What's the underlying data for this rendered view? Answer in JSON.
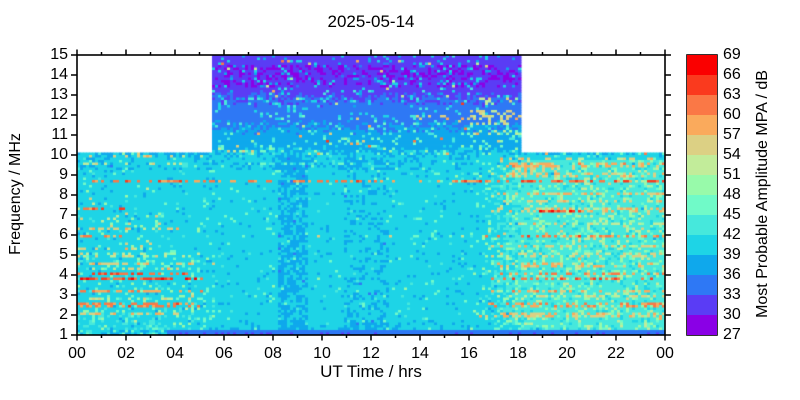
{
  "chart_data": {
    "type": "heatmap",
    "subtype": "spectrogram",
    "title": "2025-05-14",
    "xlabel": "UT Time / hrs",
    "ylabel": "Frequency / MHz",
    "x_range_hours": [
      0,
      24
    ],
    "y_range_mhz": [
      1,
      15
    ],
    "x_ticks_hours": [
      0,
      2,
      4,
      6,
      8,
      10,
      12,
      14,
      16,
      18,
      20,
      22,
      24
    ],
    "x_tick_labels": [
      "00",
      "02",
      "04",
      "06",
      "08",
      "10",
      "12",
      "14",
      "16",
      "18",
      "20",
      "22",
      "00"
    ],
    "y_ticks_mhz": [
      1,
      2,
      3,
      4,
      5,
      6,
      7,
      8,
      9,
      10,
      11,
      12,
      13,
      14,
      15
    ],
    "y_tick_labels": [
      "1",
      "2",
      "3",
      "4",
      "5",
      "6",
      "7",
      "8",
      "9",
      "10",
      "11",
      "12",
      "13",
      "14",
      "15"
    ],
    "grid": false,
    "legend_position": "right-colorbar",
    "colorbar": {
      "label": "Most Probable Amplitude MPA / dB",
      "min_db": 27,
      "max_db": 69,
      "step_db": 3,
      "tick_labels_top_to_bottom": [
        "69",
        "66",
        "63",
        "60",
        "57",
        "54",
        "51",
        "48",
        "45",
        "42",
        "39",
        "36",
        "33",
        "30",
        "27"
      ],
      "band_colors_low_to_high": [
        "#8A00E6",
        "#5A3CF5",
        "#2E78F5",
        "#0FA8EC",
        "#1ED4E6",
        "#46E8DC",
        "#70FAC8",
        "#98FAAA",
        "#C2EC9A",
        "#DCD084",
        "#FAAA5C",
        "#FA7846",
        "#FA3A1E",
        "#FA0000"
      ]
    },
    "coverage_regions": [
      {
        "t_hours": [
          0,
          5.55
        ],
        "f_mhz": [
          1,
          10
        ],
        "note": "night, low band only; rest white"
      },
      {
        "t_hours": [
          5.55,
          18.12
        ],
        "f_mhz": [
          1,
          15
        ],
        "note": "daytime full band"
      },
      {
        "t_hours": [
          18.12,
          24
        ],
        "f_mhz": [
          1,
          10
        ],
        "note": "evening, low band only; rest white"
      }
    ],
    "render_model": {
      "seed": 42,
      "grid": {
        "cols": 196,
        "rows": 112
      },
      "mid_t0": 5.55,
      "mid_t1": 18.12,
      "day_background_db": 40.3,
      "upper_profile_f_db": [
        [
          10,
          39.2
        ],
        [
          10.5,
          38.2
        ],
        [
          11,
          36.8
        ],
        [
          11.5,
          35.8
        ],
        [
          12,
          34.8
        ],
        [
          12.5,
          33.6
        ],
        [
          13,
          32.8
        ],
        [
          13.4,
          31.6
        ],
        [
          14,
          30.6
        ],
        [
          14.4,
          30.8
        ],
        [
          15,
          31.0
        ]
      ],
      "violet_patch": {
        "f0": 13.4,
        "f1": 14.5,
        "prob": 0.35,
        "delta_db": -1.8
      },
      "night": {
        "t_end": 5.6,
        "fade": 3.4,
        "below_mhz": 5.3,
        "boost_per_mhz": 0.3,
        "speckle": 0.15
      },
      "evening": {
        "t0": 15.9,
        "t1": 18.4,
        "below_mhz": 9.75,
        "boost_db": 3.4,
        "speckle": 0.2
      },
      "bottom_band": {
        "fmax_mhz": 1.25,
        "t_start": 3.65,
        "db": 34.6
      },
      "low_gradient": {
        "fmax": 2.0,
        "per_mhz_db": -1.2
      },
      "vertical_dips": [
        {
          "t0": 8.2,
          "t1": 9.45,
          "fmax": 10,
          "delta_db": -1.4
        },
        {
          "t0": 10.9,
          "t1": 12.7,
          "fmax": 10,
          "delta_db": -0.7
        }
      ],
      "lines_f_hw_t0_t1_db_dens_mode": [
        [
          2.1,
          0.08,
          0,
          5.6,
          56,
          0.6,
          "n"
        ],
        [
          2.5,
          0.07,
          0,
          5.3,
          61,
          0.55,
          "n"
        ],
        [
          2.85,
          0.06,
          0,
          4.6,
          54,
          0.45,
          "n"
        ],
        [
          3.2,
          0.07,
          0,
          5.1,
          60,
          0.55,
          "n"
        ],
        [
          3.5,
          0.06,
          0,
          4.5,
          54,
          0.4,
          "n"
        ],
        [
          3.8,
          0.1,
          0,
          5.3,
          64,
          0.7,
          "n"
        ],
        [
          4.05,
          0.09,
          0,
          5.3,
          63,
          0.65,
          "n"
        ],
        [
          4.3,
          0.06,
          0,
          4.4,
          55,
          0.45,
          "n"
        ],
        [
          4.55,
          0.07,
          0,
          6.0,
          57,
          0.45,
          "n"
        ],
        [
          5.0,
          0.07,
          0,
          4.5,
          53,
          0.45,
          "n"
        ],
        [
          5.35,
          0.06,
          0,
          2.5,
          55,
          0.4,
          "n"
        ],
        [
          5.9,
          0.07,
          0,
          1.8,
          61,
          0.55,
          "n"
        ],
        [
          6.3,
          0.07,
          0,
          4.2,
          56,
          0.45,
          "n"
        ],
        [
          7.35,
          0.08,
          0,
          2.0,
          62,
          0.55,
          "n"
        ],
        [
          9.0,
          0.05,
          0,
          1.6,
          58,
          0.35,
          "n"
        ],
        [
          9.55,
          0.08,
          0,
          5.6,
          53,
          0.28,
          "n"
        ],
        [
          9.95,
          0.07,
          0,
          5.6,
          55,
          0.3,
          "n"
        ],
        [
          8.65,
          0.06,
          0,
          17.8,
          61,
          0.5,
          ""
        ],
        [
          4.0,
          0.05,
          5.6,
          15.9,
          58,
          0.06,
          ""
        ],
        [
          5.9,
          0.05,
          5.6,
          15.9,
          55,
          0.05,
          ""
        ],
        [
          7.25,
          0.05,
          5.6,
          15.9,
          55,
          0.05,
          ""
        ],
        [
          9.6,
          0.06,
          5.6,
          15.9,
          46,
          0.1,
          ""
        ],
        [
          10.3,
          0.15,
          5.8,
          7.2,
          54,
          0.18,
          ""
        ],
        [
          11.9,
          0.12,
          13.8,
          18.12,
          57,
          0.15,
          ""
        ],
        [
          11.9,
          0.35,
          15.8,
          18.12,
          54,
          0.28,
          ""
        ],
        [
          12.7,
          0.2,
          16.2,
          18.12,
          53,
          0.22,
          ""
        ],
        [
          11.1,
          0.15,
          16.0,
          18.12,
          52,
          0.2,
          ""
        ],
        [
          14.8,
          0.12,
          8.3,
          8.9,
          60,
          0.35,
          ""
        ],
        [
          2.0,
          0.08,
          15.9,
          24,
          57,
          0.5,
          "e"
        ],
        [
          2.5,
          0.07,
          16.3,
          24,
          60,
          0.45,
          "e"
        ],
        [
          2.9,
          0.06,
          16.8,
          24,
          54,
          0.4,
          "e"
        ],
        [
          3.2,
          0.07,
          16.3,
          24,
          58,
          0.45,
          "e"
        ],
        [
          3.8,
          0.09,
          15.9,
          24,
          62,
          0.55,
          "e"
        ],
        [
          4.1,
          0.08,
          15.9,
          24,
          60,
          0.5,
          "e"
        ],
        [
          4.5,
          0.07,
          16.3,
          24,
          57,
          0.45,
          "e"
        ],
        [
          5.0,
          0.07,
          16.8,
          24,
          54,
          0.4,
          "e"
        ],
        [
          5.4,
          0.06,
          16.8,
          24,
          56,
          0.38,
          "e"
        ],
        [
          5.9,
          0.07,
          15.9,
          24,
          61,
          0.5,
          "e"
        ],
        [
          6.25,
          0.06,
          16.8,
          24,
          56,
          0.4,
          "e"
        ],
        [
          6.6,
          0.06,
          17.3,
          24,
          53,
          0.38,
          "e"
        ],
        [
          7.2,
          0.1,
          18.8,
          20.6,
          65,
          0.75,
          ""
        ],
        [
          7.25,
          0.07,
          15.9,
          24,
          57,
          0.4,
          "e"
        ],
        [
          7.65,
          0.06,
          17.3,
          24,
          55,
          0.38,
          "e"
        ],
        [
          8.05,
          0.07,
          16.8,
          24,
          57,
          0.4,
          "e"
        ],
        [
          8.65,
          0.07,
          17.8,
          24,
          62,
          0.55,
          ""
        ],
        [
          9.0,
          0.07,
          17.3,
          24,
          56,
          0.38,
          "e"
        ],
        [
          9.3,
          0.3,
          17.8,
          19.6,
          56,
          0.4,
          ""
        ],
        [
          9.5,
          0.12,
          17.3,
          24,
          58,
          0.5,
          "e"
        ],
        [
          9.85,
          0.08,
          17.3,
          24,
          55,
          0.42,
          "e"
        ]
      ]
    }
  }
}
